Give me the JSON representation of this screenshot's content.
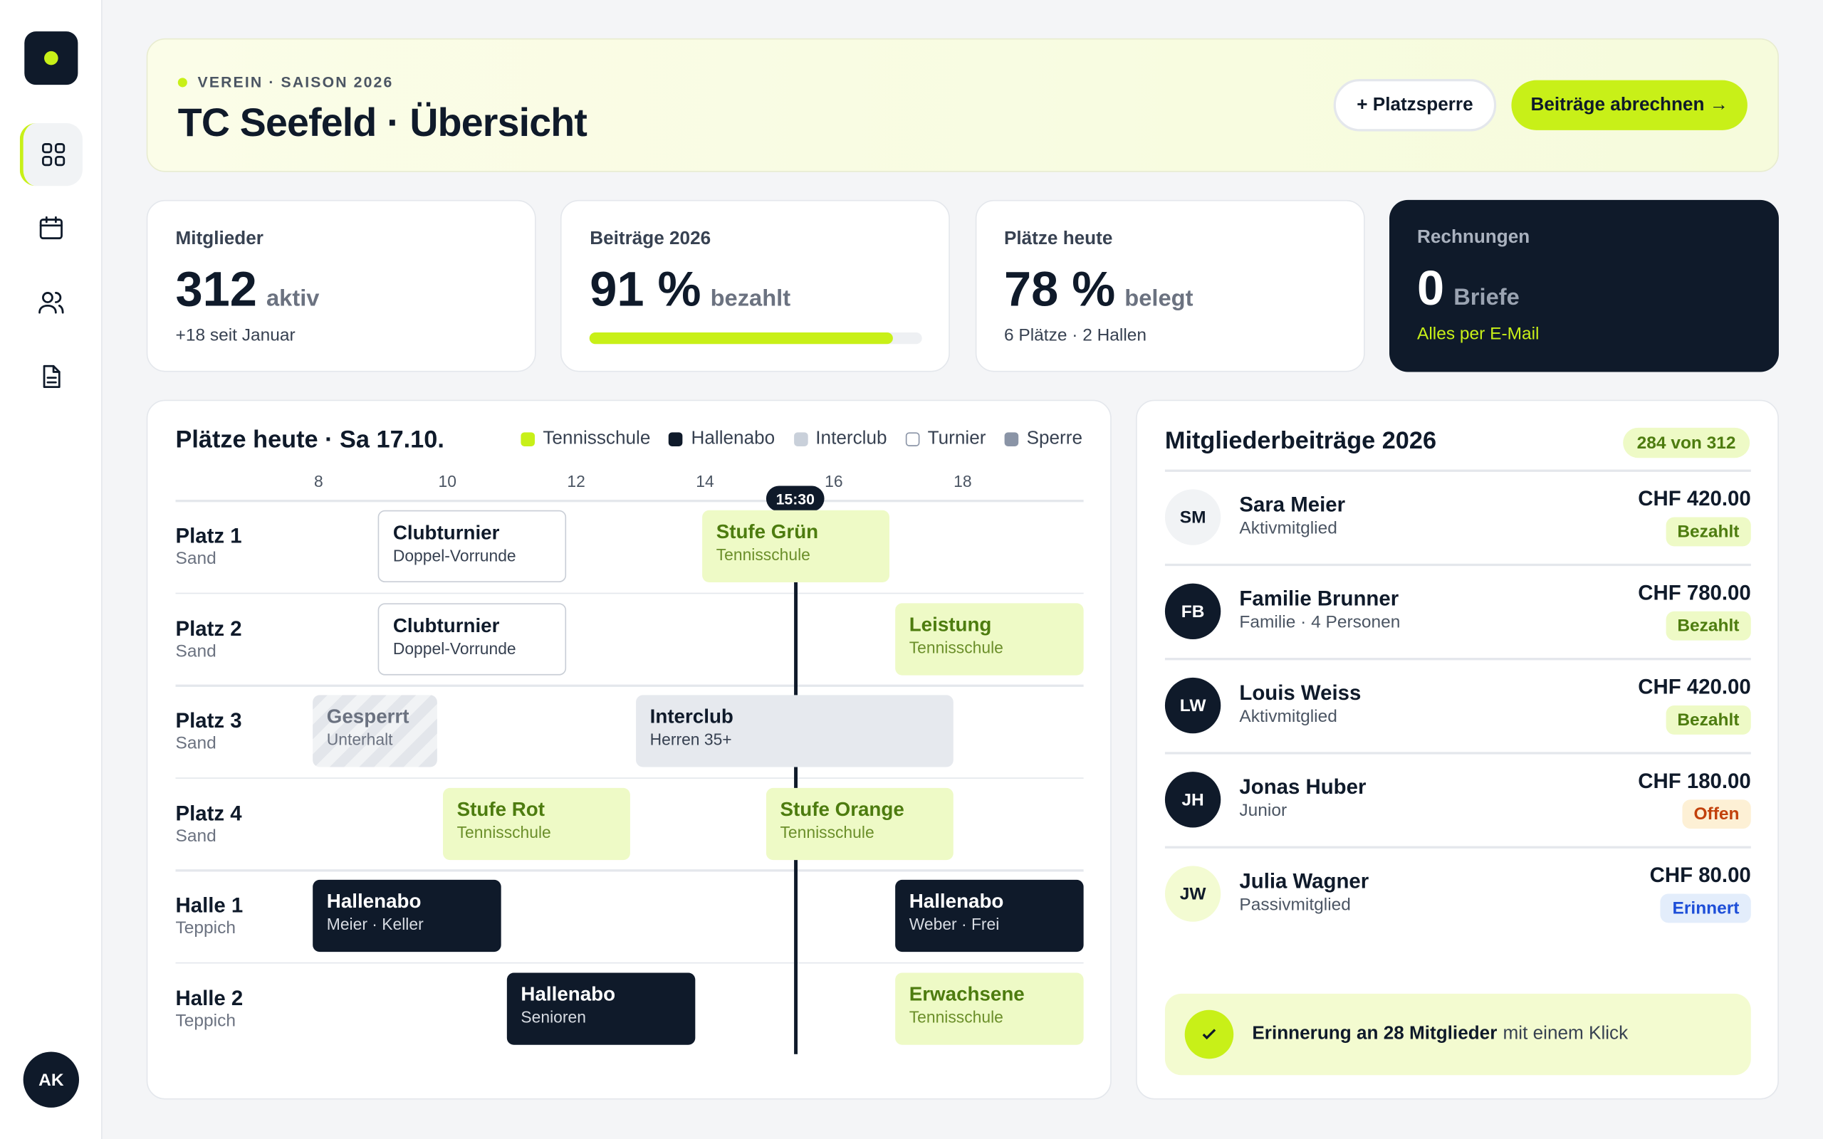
{
  "sidebar": {
    "avatar": "AK"
  },
  "header": {
    "eyebrow": "VEREIN · SAISON 2026",
    "title": "TC Seefeld · Übersicht",
    "buttons": [
      "+ Platzsperre",
      "Beiträge abrechnen →"
    ]
  },
  "stats": [
    {
      "label": "Mitglieder",
      "value": "312",
      "unit": "aktiv",
      "note": "+18 seit Januar"
    },
    {
      "label": "Beiträge 2026",
      "value": "91 %",
      "unit": "bezahlt",
      "progress": 91
    },
    {
      "label": "Plätze heute",
      "value": "78 %",
      "unit": "belegt",
      "note": "6 Plätze · 2 Hallen"
    },
    {
      "label": "Rechnungen",
      "value": "0",
      "unit": "Briefe",
      "note": "Alles per E-Mail",
      "theme": "dark"
    }
  ],
  "schedule": {
    "title": "Plätze heute · Sa 17.10.",
    "legend": [
      {
        "name": "Tennisschule",
        "color": "#c8f018"
      },
      {
        "name": "Hallenabo",
        "color": "#0f1a2a"
      },
      {
        "name": "Interclub",
        "color": "#c9d0da"
      },
      {
        "name": "Turnier",
        "color": "#ffffff"
      },
      {
        "name": "Sperre",
        "color": "#8a94a6"
      }
    ],
    "hours": [
      "8",
      "10",
      "12",
      "14",
      "16",
      "18"
    ],
    "now": "15:30",
    "courts": [
      {
        "name": "Platz 1",
        "surface": "Sand",
        "bookings": [
          {
            "title": "Clubturnier",
            "subtitle": "Doppel-Vorrunde",
            "kind": "tournament"
          },
          {
            "title": "Stufe Grün",
            "subtitle": "Tennisschule",
            "kind": "school"
          }
        ]
      },
      {
        "name": "Platz 2",
        "surface": "Sand",
        "bookings": [
          {
            "title": "Clubturnier",
            "subtitle": "Doppel-Vorrunde",
            "kind": "tournament"
          },
          {
            "title": "Leistung",
            "subtitle": "Tennisschule",
            "kind": "school"
          }
        ]
      },
      {
        "name": "Platz 3",
        "surface": "Sand",
        "bookings": [
          {
            "title": "Gesperrt",
            "subtitle": "Unterhalt",
            "kind": "blocked"
          },
          {
            "title": "Interclub",
            "subtitle": "Herren 35+",
            "kind": "interclub"
          }
        ]
      },
      {
        "name": "Platz 4",
        "surface": "Sand",
        "bookings": [
          {
            "title": "Stufe Rot",
            "subtitle": "Tennisschule",
            "kind": "school"
          },
          {
            "title": "Stufe Orange",
            "subtitle": "Tennisschule",
            "kind": "school"
          }
        ]
      },
      {
        "name": "Halle 1",
        "surface": "Teppich",
        "bookings": [
          {
            "title": "Hallenabo",
            "subtitle": "Meier · Keller",
            "kind": "hall"
          },
          {
            "title": "Hallenabo",
            "subtitle": "Weber · Frei",
            "kind": "hall"
          }
        ]
      },
      {
        "name": "Halle 2",
        "surface": "Teppich",
        "bookings": [
          {
            "title": "Hallenabo",
            "subtitle": "Senioren",
            "kind": "hall"
          },
          {
            "title": "Erwachsene",
            "subtitle": "Tennisschule",
            "kind": "school"
          }
        ]
      }
    ]
  },
  "fees": {
    "title": "Mitgliederbeiträge 2026",
    "badge": "284 von 312",
    "members": [
      {
        "initials": "SM",
        "name": "Sara Meier",
        "type": "Aktivmitglied",
        "amount": "CHF 420.00",
        "status": "Bezahlt",
        "avatar_style": "light",
        "tone": "paid"
      },
      {
        "initials": "FB",
        "name": "Familie Brunner",
        "type": "Familie · 4 Personen",
        "amount": "CHF 780.00",
        "status": "Bezahlt",
        "avatar_style": "dark",
        "tone": "paid"
      },
      {
        "initials": "LW",
        "name": "Louis Weiss",
        "type": "Aktivmitglied",
        "amount": "CHF 420.00",
        "status": "Bezahlt",
        "avatar_style": "dark",
        "tone": "paid"
      },
      {
        "initials": "JH",
        "name": "Jonas Huber",
        "type": "Junior",
        "amount": "CHF 180.00",
        "status": "Offen",
        "avatar_style": "dark",
        "tone": "open"
      },
      {
        "initials": "JW",
        "name": "Julia Wagner",
        "type": "Passivmitglied",
        "amount": "CHF 80.00",
        "status": "Erinnert",
        "avatar_style": "lime",
        "tone": "reminded"
      }
    ],
    "reminder": {
      "bold": "Erinnerung an 28 Mitglieder",
      "rest": "mit einem Klick"
    }
  }
}
